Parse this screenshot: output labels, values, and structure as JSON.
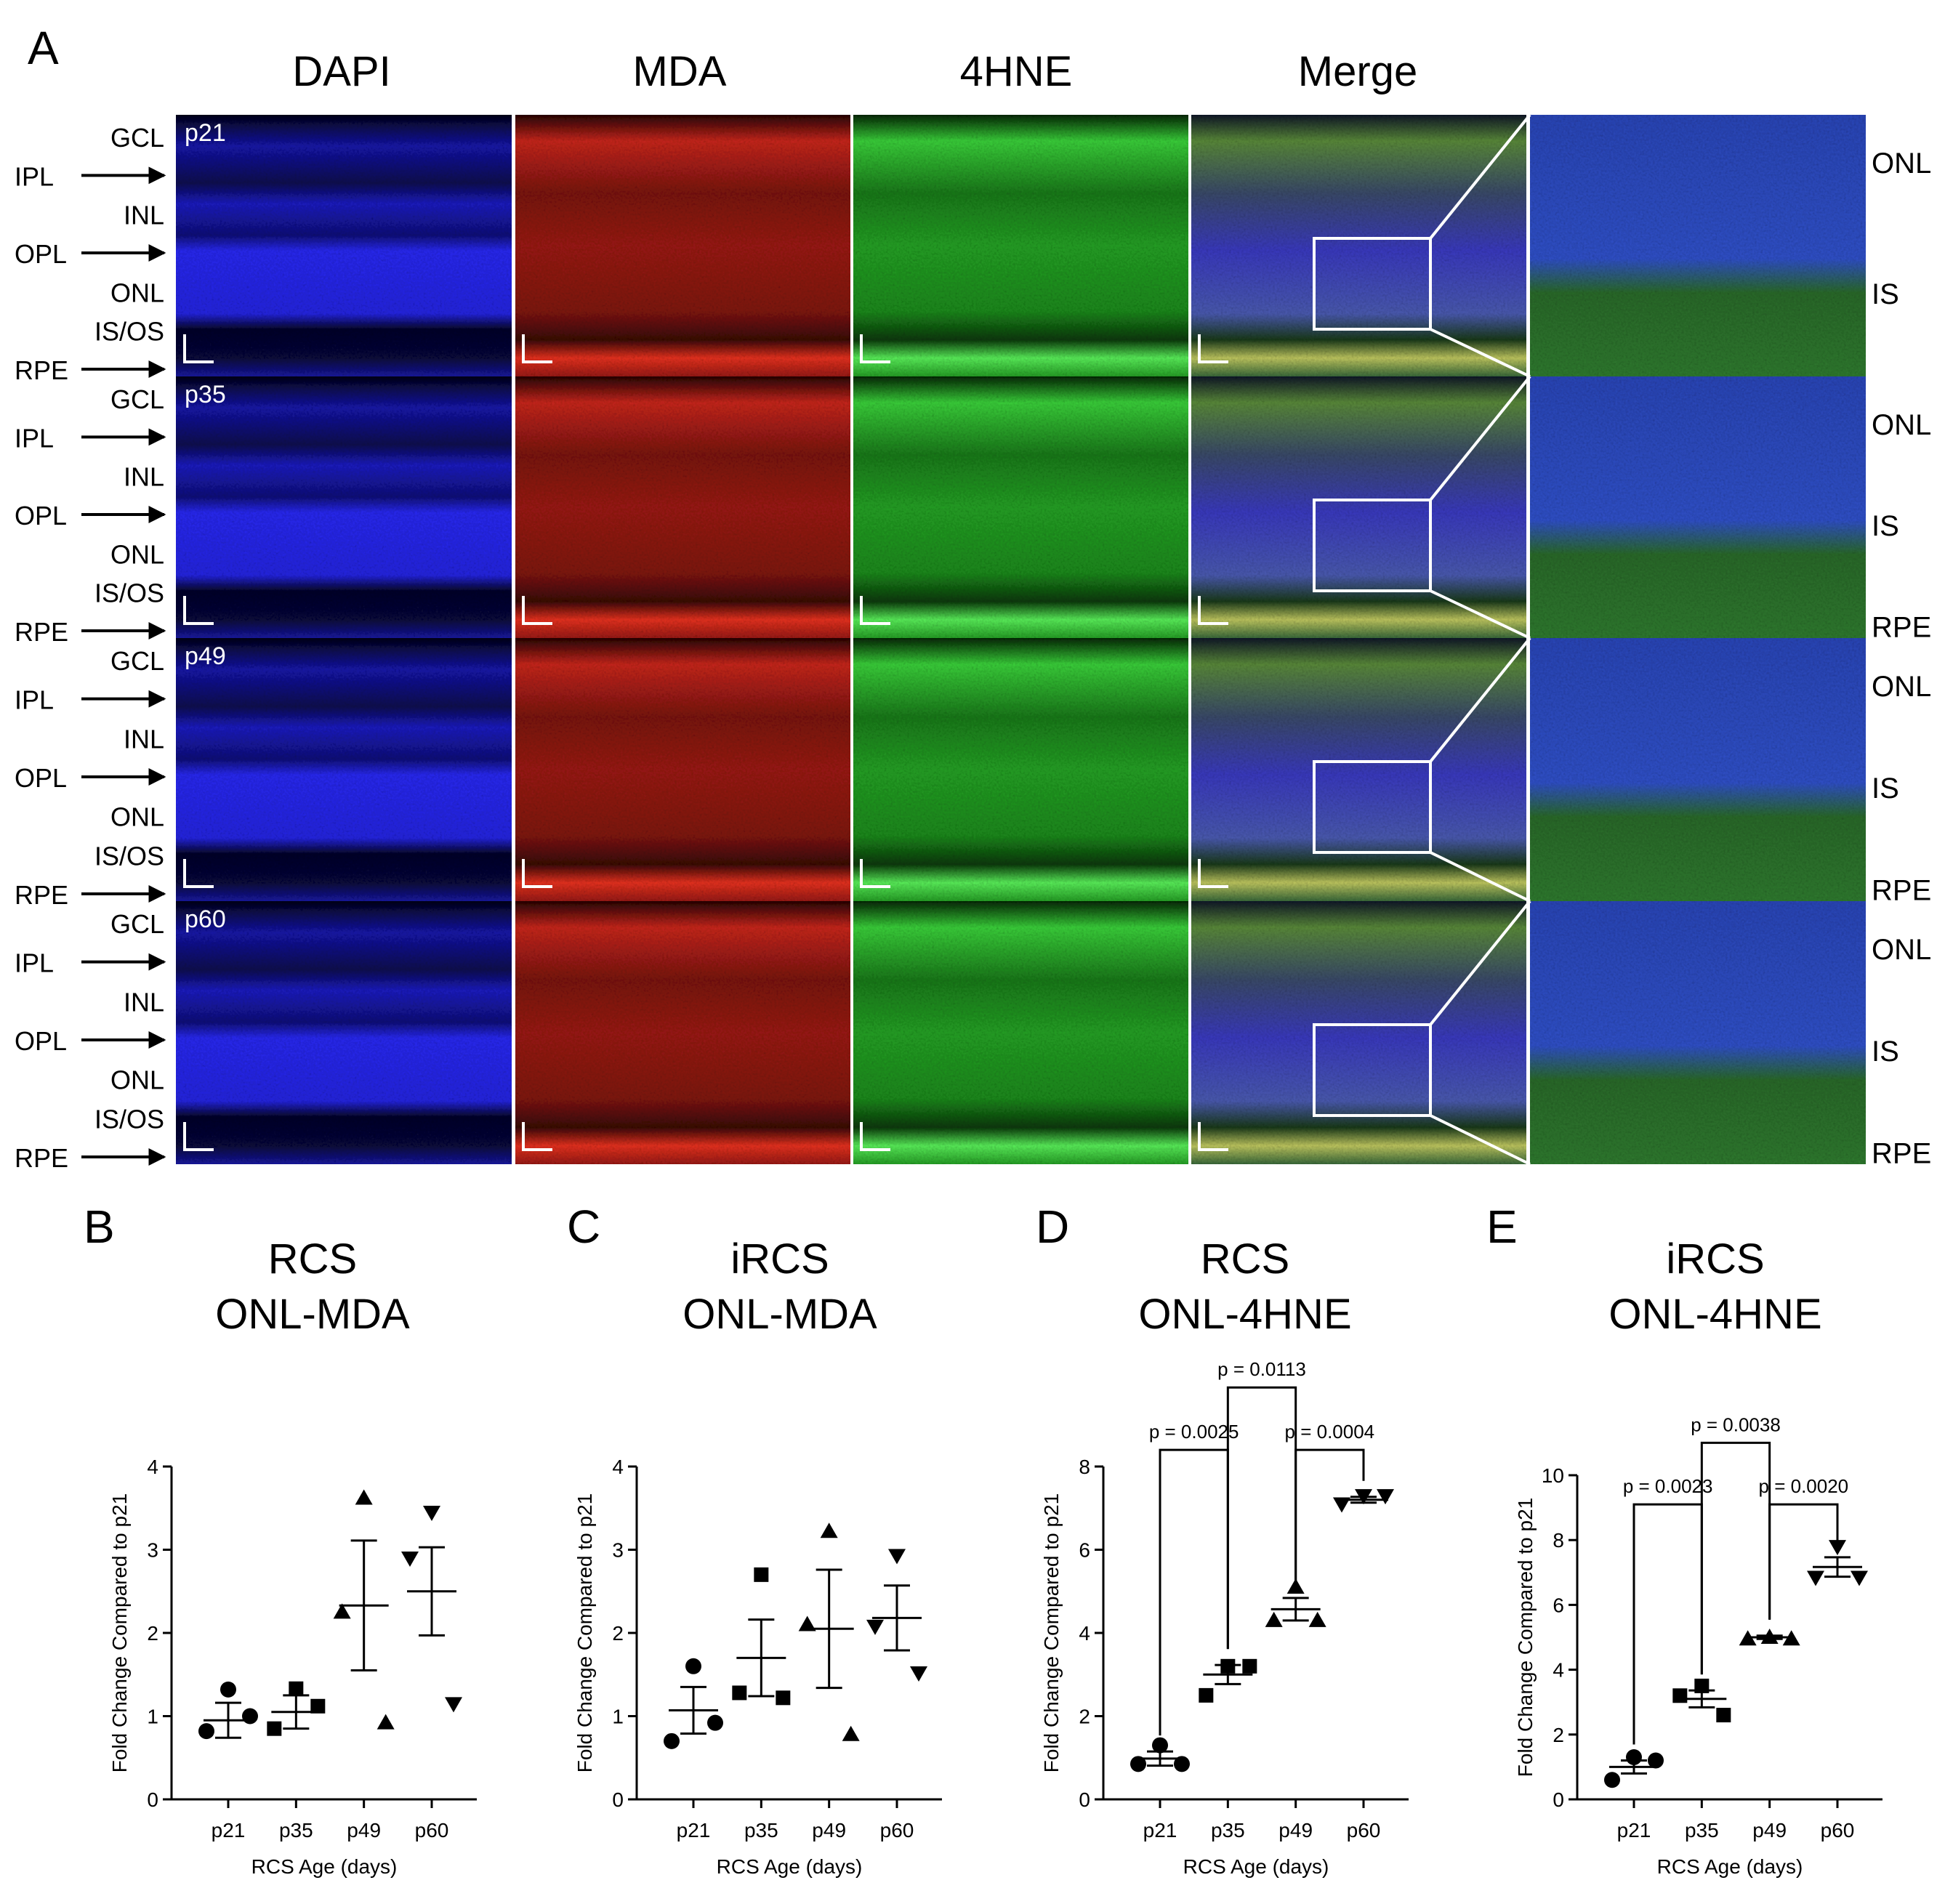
{
  "panel_A": {
    "letter": "A",
    "column_headers": [
      "DAPI",
      "MDA",
      "4HNE",
      "Merge"
    ],
    "rows": [
      {
        "age": "p21",
        "layer_labels": [
          {
            "text": "GCL",
            "arrow": false
          },
          {
            "text": "IPL",
            "arrow": true
          },
          {
            "text": "INL",
            "arrow": false
          },
          {
            "text": "OPL",
            "arrow": true
          },
          {
            "text": "ONL",
            "arrow": false
          },
          {
            "text": "IS/OS",
            "arrow": false
          },
          {
            "text": "RPE",
            "arrow": true
          }
        ],
        "zoom_labels": [
          "ONL",
          "IS"
        ]
      },
      {
        "age": "p35",
        "layer_labels": [
          {
            "text": "GCL",
            "arrow": false
          },
          {
            "text": "IPL",
            "arrow": true
          },
          {
            "text": "INL",
            "arrow": false
          },
          {
            "text": "OPL",
            "arrow": true
          },
          {
            "text": "ONL",
            "arrow": false
          },
          {
            "text": "IS/OS",
            "arrow": false
          },
          {
            "text": "RPE",
            "arrow": true
          }
        ],
        "zoom_labels": [
          "ONL",
          "IS",
          "RPE"
        ]
      },
      {
        "age": "p49",
        "layer_labels": [
          {
            "text": "GCL",
            "arrow": false
          },
          {
            "text": "IPL",
            "arrow": true
          },
          {
            "text": "INL",
            "arrow": false
          },
          {
            "text": "OPL",
            "arrow": true
          },
          {
            "text": "ONL",
            "arrow": false
          },
          {
            "text": "IS/OS",
            "arrow": false
          },
          {
            "text": "RPE",
            "arrow": true
          }
        ],
        "zoom_labels": [
          "ONL",
          "IS",
          "RPE"
        ]
      },
      {
        "age": "p60",
        "layer_labels": [
          {
            "text": "GCL",
            "arrow": false
          },
          {
            "text": "IPL",
            "arrow": true
          },
          {
            "text": "INL",
            "arrow": false
          },
          {
            "text": "OPL",
            "arrow": true
          },
          {
            "text": "ONL",
            "arrow": false
          },
          {
            "text": "IS/OS",
            "arrow": false
          },
          {
            "text": "RPE",
            "arrow": true
          }
        ],
        "zoom_labels": [
          "ONL",
          "IS",
          "RPE"
        ]
      }
    ],
    "channel_colors": {
      "DAPI": "#1a1ae0",
      "MDA": "#e0281e",
      "4HNE": "#2fd12f"
    }
  },
  "chart_data": [
    {
      "letter": "B",
      "type": "scatter",
      "title": [
        "RCS",
        "ONL-MDA"
      ],
      "xlabel": "RCS Age (days)",
      "ylabel": "Fold  Change Compared to p21",
      "categories": [
        "p21",
        "p35",
        "p49",
        "p60"
      ],
      "ylim": [
        0,
        4
      ],
      "yticks": [
        0,
        1,
        2,
        3,
        4
      ],
      "markers": [
        "circle",
        "square",
        "triangle-up",
        "triangle-down"
      ],
      "points": [
        [
          1.32,
          0.82,
          1.0
        ],
        [
          1.33,
          0.85,
          1.12
        ],
        [
          3.62,
          2.25,
          0.92
        ],
        [
          3.45,
          2.9,
          1.15
        ]
      ],
      "mean": [
        0.95,
        1.05,
        2.33,
        2.5
      ],
      "sem": [
        0.21,
        0.2,
        0.78,
        0.53
      ],
      "comparisons": []
    },
    {
      "letter": "C",
      "type": "scatter",
      "title": [
        "iRCS",
        "ONL-MDA"
      ],
      "xlabel": "RCS Age (days)",
      "ylabel": "Fold  Change Compared to p21",
      "categories": [
        "p21",
        "p35",
        "p49",
        "p60"
      ],
      "ylim": [
        0,
        4
      ],
      "yticks": [
        0,
        1,
        2,
        3,
        4
      ],
      "markers": [
        "circle",
        "square",
        "triangle-up",
        "triangle-down"
      ],
      "points": [
        [
          1.6,
          0.7,
          0.92
        ],
        [
          2.7,
          1.28,
          1.22
        ],
        [
          3.22,
          2.1,
          0.78
        ],
        [
          2.93,
          2.08,
          1.52
        ]
      ],
      "mean": [
        1.07,
        1.7,
        2.05,
        2.18
      ],
      "sem": [
        0.28,
        0.46,
        0.71,
        0.39
      ],
      "comparisons": []
    },
    {
      "letter": "D",
      "type": "scatter",
      "title": [
        "RCS",
        "ONL-4HNE"
      ],
      "xlabel": "RCS Age (days)",
      "ylabel": "Fold  Change Compared to p21",
      "categories": [
        "p21",
        "p35",
        "p49",
        "p60"
      ],
      "ylim": [
        0,
        8
      ],
      "yticks": [
        0,
        2,
        4,
        6,
        8
      ],
      "markers": [
        "circle",
        "square",
        "triangle-up",
        "triangle-down"
      ],
      "points": [
        [
          1.3,
          0.85,
          0.85
        ],
        [
          3.2,
          2.5,
          3.2
        ],
        [
          5.1,
          4.3,
          4.3
        ],
        [
          7.3,
          7.1,
          7.3
        ]
      ],
      "mean": [
        0.98,
        3.0,
        4.57,
        7.2
      ],
      "sem": [
        0.17,
        0.23,
        0.27,
        0.07
      ],
      "comparisons": [
        {
          "from": 0,
          "to": 1,
          "label": "p = 0.0025",
          "y": 8.4
        },
        {
          "from": 1,
          "to": 2,
          "label": "p = 0.0113",
          "y": 9.9
        },
        {
          "from": 2,
          "to": 3,
          "label": "p = 0.0004",
          "y": 8.4
        }
      ]
    },
    {
      "letter": "E",
      "type": "scatter",
      "title": [
        "iRCS",
        "ONL-4HNE"
      ],
      "xlabel": "RCS Age (days)",
      "ylabel": "Fold  Change Compared to p21",
      "categories": [
        "p21",
        "p35",
        "p49",
        "p60"
      ],
      "ylim": [
        0,
        10
      ],
      "yticks": [
        0,
        2,
        4,
        6,
        8,
        10
      ],
      "markers": [
        "circle",
        "square",
        "triangle-up",
        "triangle-down"
      ],
      "points": [
        [
          1.3,
          0.6,
          1.2
        ],
        [
          3.5,
          3.2,
          2.6
        ],
        [
          5.0,
          4.95,
          4.95
        ],
        [
          7.8,
          6.85,
          6.85
        ]
      ],
      "mean": [
        1.0,
        3.1,
        5.0,
        7.17
      ],
      "sem": [
        0.2,
        0.26,
        0.05,
        0.3
      ],
      "comparisons": [
        {
          "from": 0,
          "to": 1,
          "label": "p = 0.0023",
          "y": 9.1
        },
        {
          "from": 1,
          "to": 2,
          "label": "p = 0.0038",
          "y": 11.0
        },
        {
          "from": 2,
          "to": 3,
          "label": "p = 0.0020",
          "y": 9.1
        }
      ]
    }
  ]
}
